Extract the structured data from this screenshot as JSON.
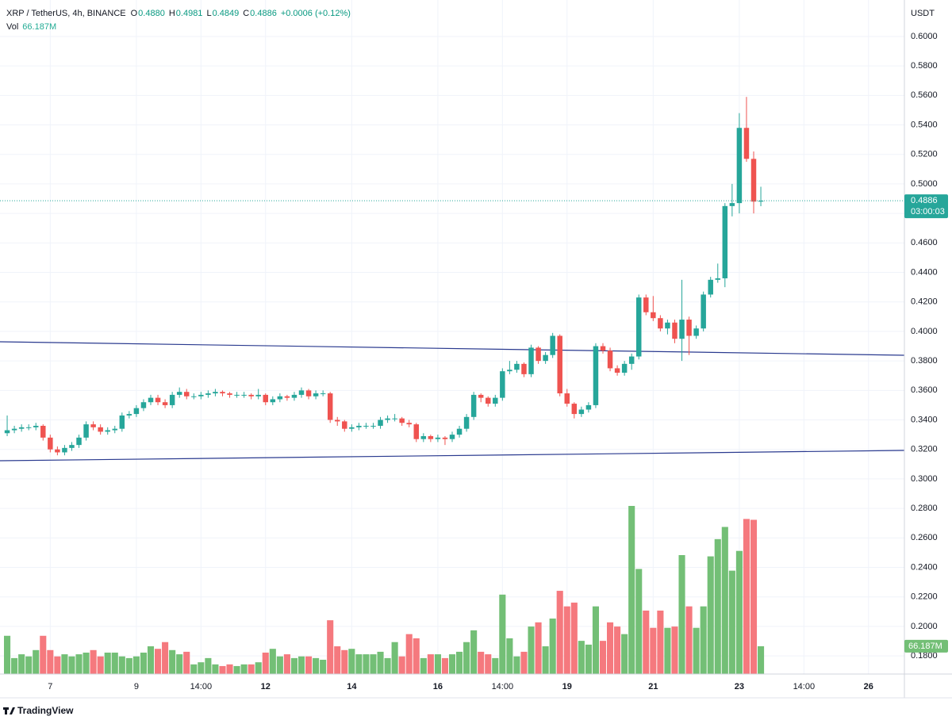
{
  "header": {
    "symbol": "XRP / TetherUS, 4h, BINANCE",
    "ohlc_letters": [
      "O",
      "H",
      "L",
      "C"
    ],
    "ohlc_values": [
      "0.4880",
      "0.4981",
      "0.4849",
      "0.4886"
    ],
    "change": "+0.0006 (+0.12%)",
    "volume_title": "Vol",
    "volume_label": "66.187M"
  },
  "currency": "USDT",
  "last_price_label": "0.4886",
  "countdown": "03:00:03",
  "logo": "TradingView",
  "chart_data": {
    "type": "candlestick",
    "up_color": "#26a69a",
    "down_color": "#ef5350",
    "volume_up_color": "#73bf76",
    "volume_down_color": "#f5797e",
    "grid": true,
    "xlim": [
      -1,
      125
    ],
    "xticks": [
      {
        "value": 6,
        "label": "7"
      },
      {
        "value": 18,
        "label": "9"
      },
      {
        "value": 27,
        "label": "14:00"
      },
      {
        "value": 36,
        "label": "12"
      },
      {
        "value": 48,
        "label": "14"
      },
      {
        "value": 60,
        "label": "16"
      },
      {
        "value": 69,
        "label": "14:00"
      },
      {
        "value": 78,
        "label": "19"
      },
      {
        "value": 90,
        "label": "21"
      },
      {
        "value": 102,
        "label": "23"
      },
      {
        "value": 111,
        "label": "14:00"
      },
      {
        "value": 120,
        "label": "26"
      }
    ],
    "ylim": [
      0.1677,
      0.6247
    ],
    "yticks": [
      {
        "value": 0.18,
        "label": "0.1800"
      },
      {
        "value": 0.2,
        "label": "0.2000"
      },
      {
        "value": 0.22,
        "label": "0.2200"
      },
      {
        "value": 0.24,
        "label": "0.2400"
      },
      {
        "value": 0.26,
        "label": "0.2600"
      },
      {
        "value": 0.28,
        "label": "0.2800"
      },
      {
        "value": 0.3,
        "label": "0.3000"
      },
      {
        "value": 0.32,
        "label": "0.3200"
      },
      {
        "value": 0.34,
        "label": "0.3400"
      },
      {
        "value": 0.36,
        "label": "0.3600"
      },
      {
        "value": 0.38,
        "label": "0.3800"
      },
      {
        "value": 0.4,
        "label": "0.4000"
      },
      {
        "value": 0.42,
        "label": "0.4200"
      },
      {
        "value": 0.44,
        "label": "0.4400"
      },
      {
        "value": 0.46,
        "label": "0.4600"
      },
      {
        "value": 0.48,
        "label": "0.4800"
      },
      {
        "value": 0.5,
        "label": "0.5000"
      },
      {
        "value": 0.52,
        "label": "0.5200"
      },
      {
        "value": 0.54,
        "label": "0.5400"
      },
      {
        "value": 0.56,
        "label": "0.5600"
      },
      {
        "value": 0.58,
        "label": "0.5800"
      },
      {
        "value": 0.6,
        "label": "0.6000"
      }
    ],
    "candles": [
      [
        0.331,
        0.343,
        0.329,
        0.333
      ],
      [
        0.333,
        0.336,
        0.331,
        0.334
      ],
      [
        0.334,
        0.337,
        0.332,
        0.335
      ],
      [
        0.335,
        0.337,
        0.333,
        0.335
      ],
      [
        0.335,
        0.338,
        0.333,
        0.336
      ],
      [
        0.336,
        0.337,
        0.326,
        0.328
      ],
      [
        0.328,
        0.33,
        0.318,
        0.32
      ],
      [
        0.32,
        0.322,
        0.316,
        0.318
      ],
      [
        0.318,
        0.323,
        0.316,
        0.321
      ],
      [
        0.321,
        0.325,
        0.319,
        0.323
      ],
      [
        0.323,
        0.33,
        0.321,
        0.328
      ],
      [
        0.328,
        0.339,
        0.326,
        0.337
      ],
      [
        0.337,
        0.339,
        0.333,
        0.335
      ],
      [
        0.335,
        0.337,
        0.33,
        0.332
      ],
      [
        0.332,
        0.335,
        0.33,
        0.333
      ],
      [
        0.333,
        0.336,
        0.331,
        0.334
      ],
      [
        0.334,
        0.345,
        0.332,
        0.343
      ],
      [
        0.343,
        0.346,
        0.341,
        0.344
      ],
      [
        0.344,
        0.35,
        0.342,
        0.348
      ],
      [
        0.348,
        0.354,
        0.346,
        0.352
      ],
      [
        0.352,
        0.357,
        0.35,
        0.355
      ],
      [
        0.355,
        0.357,
        0.35,
        0.352
      ],
      [
        0.352,
        0.354,
        0.348,
        0.35
      ],
      [
        0.35,
        0.359,
        0.348,
        0.357
      ],
      [
        0.357,
        0.362,
        0.355,
        0.359
      ],
      [
        0.359,
        0.361,
        0.354,
        0.356
      ],
      [
        0.356,
        0.358,
        0.354,
        0.356
      ],
      [
        0.356,
        0.359,
        0.354,
        0.357
      ],
      [
        0.357,
        0.36,
        0.355,
        0.358
      ],
      [
        0.358,
        0.361,
        0.356,
        0.359
      ],
      [
        0.359,
        0.36,
        0.356,
        0.358
      ],
      [
        0.358,
        0.359,
        0.355,
        0.357
      ],
      [
        0.357,
        0.359,
        0.355,
        0.357
      ],
      [
        0.357,
        0.359,
        0.355,
        0.357
      ],
      [
        0.357,
        0.358,
        0.354,
        0.356
      ],
      [
        0.356,
        0.361,
        0.354,
        0.357
      ],
      [
        0.357,
        0.358,
        0.35,
        0.352
      ],
      [
        0.352,
        0.356,
        0.35,
        0.354
      ],
      [
        0.354,
        0.358,
        0.352,
        0.356
      ],
      [
        0.356,
        0.357,
        0.353,
        0.355
      ],
      [
        0.355,
        0.359,
        0.353,
        0.357
      ],
      [
        0.357,
        0.362,
        0.355,
        0.36
      ],
      [
        0.36,
        0.361,
        0.354,
        0.356
      ],
      [
        0.356,
        0.36,
        0.354,
        0.358
      ],
      [
        0.358,
        0.36,
        0.356,
        0.358
      ],
      [
        0.358,
        0.359,
        0.338,
        0.34
      ],
      [
        0.34,
        0.342,
        0.336,
        0.339
      ],
      [
        0.339,
        0.34,
        0.332,
        0.334
      ],
      [
        0.334,
        0.337,
        0.332,
        0.335
      ],
      [
        0.335,
        0.338,
        0.333,
        0.336
      ],
      [
        0.336,
        0.338,
        0.334,
        0.336
      ],
      [
        0.336,
        0.338,
        0.334,
        0.336
      ],
      [
        0.336,
        0.342,
        0.334,
        0.34
      ],
      [
        0.34,
        0.343,
        0.338,
        0.341
      ],
      [
        0.341,
        0.344,
        0.339,
        0.341
      ],
      [
        0.341,
        0.342,
        0.336,
        0.338
      ],
      [
        0.338,
        0.34,
        0.335,
        0.337
      ],
      [
        0.337,
        0.338,
        0.325,
        0.327
      ],
      [
        0.327,
        0.331,
        0.325,
        0.329
      ],
      [
        0.329,
        0.33,
        0.325,
        0.327
      ],
      [
        0.327,
        0.33,
        0.325,
        0.328
      ],
      [
        0.328,
        0.329,
        0.323,
        0.327
      ],
      [
        0.327,
        0.332,
        0.325,
        0.33
      ],
      [
        0.33,
        0.336,
        0.328,
        0.334
      ],
      [
        0.334,
        0.344,
        0.332,
        0.342
      ],
      [
        0.342,
        0.359,
        0.34,
        0.357
      ],
      [
        0.357,
        0.358,
        0.352,
        0.355
      ],
      [
        0.355,
        0.356,
        0.349,
        0.351
      ],
      [
        0.351,
        0.357,
        0.349,
        0.355
      ],
      [
        0.355,
        0.375,
        0.353,
        0.373
      ],
      [
        0.373,
        0.38,
        0.371,
        0.374
      ],
      [
        0.374,
        0.38,
        0.372,
        0.378
      ],
      [
        0.378,
        0.379,
        0.369,
        0.371
      ],
      [
        0.371,
        0.391,
        0.369,
        0.389
      ],
      [
        0.389,
        0.39,
        0.378,
        0.38
      ],
      [
        0.38,
        0.386,
        0.378,
        0.384
      ],
      [
        0.384,
        0.399,
        0.382,
        0.397
      ],
      [
        0.397,
        0.398,
        0.356,
        0.358
      ],
      [
        0.358,
        0.361,
        0.349,
        0.351
      ],
      [
        0.351,
        0.352,
        0.341,
        0.344
      ],
      [
        0.344,
        0.349,
        0.342,
        0.347
      ],
      [
        0.347,
        0.352,
        0.345,
        0.35
      ],
      [
        0.35,
        0.392,
        0.348,
        0.39
      ],
      [
        0.39,
        0.392,
        0.385,
        0.387
      ],
      [
        0.387,
        0.389,
        0.373,
        0.375
      ],
      [
        0.375,
        0.377,
        0.37,
        0.372
      ],
      [
        0.372,
        0.38,
        0.37,
        0.378
      ],
      [
        0.378,
        0.385,
        0.374,
        0.383
      ],
      [
        0.383,
        0.425,
        0.381,
        0.423
      ],
      [
        0.423,
        0.425,
        0.411,
        0.413
      ],
      [
        0.413,
        0.424,
        0.407,
        0.409
      ],
      [
        0.409,
        0.411,
        0.4,
        0.402
      ],
      [
        0.402,
        0.408,
        0.398,
        0.406
      ],
      [
        0.406,
        0.408,
        0.392,
        0.395
      ],
      [
        0.395,
        0.435,
        0.38,
        0.408
      ],
      [
        0.408,
        0.41,
        0.384,
        0.397
      ],
      [
        0.397,
        0.404,
        0.395,
        0.402
      ],
      [
        0.402,
        0.427,
        0.4,
        0.425
      ],
      [
        0.425,
        0.437,
        0.423,
        0.435
      ],
      [
        0.435,
        0.446,
        0.433,
        0.436
      ],
      [
        0.436,
        0.487,
        0.43,
        0.485
      ],
      [
        0.485,
        0.5,
        0.478,
        0.487
      ],
      [
        0.487,
        0.548,
        0.48,
        0.538
      ],
      [
        0.538,
        0.559,
        0.515,
        0.517
      ],
      [
        0.517,
        0.522,
        0.48,
        0.488
      ],
      [
        0.488,
        0.4981,
        0.4849,
        0.4886
      ]
    ],
    "volumes": [
      91,
      38,
      47,
      42,
      57,
      91,
      57,
      42,
      47,
      42,
      47,
      51,
      57,
      42,
      51,
      51,
      42,
      38,
      42,
      51,
      66,
      60,
      76,
      57,
      47,
      53,
      23,
      28,
      38,
      23,
      19,
      23,
      19,
      23,
      23,
      28,
      51,
      60,
      42,
      47,
      38,
      42,
      42,
      38,
      34,
      128,
      66,
      57,
      60,
      47,
      47,
      47,
      53,
      38,
      76,
      42,
      95,
      85,
      38,
      47,
      47,
      38,
      47,
      53,
      76,
      104,
      53,
      47,
      38,
      189,
      85,
      42,
      53,
      113,
      123,
      66,
      132,
      198,
      161,
      170,
      79,
      70,
      161,
      79,
      123,
      113,
      95,
      400,
      250,
      151,
      110,
      151,
      110,
      113,
      283,
      161,
      110,
      161,
      280,
      321,
      350,
      246,
      293,
      369,
      367,
      66.187
    ]
  }
}
